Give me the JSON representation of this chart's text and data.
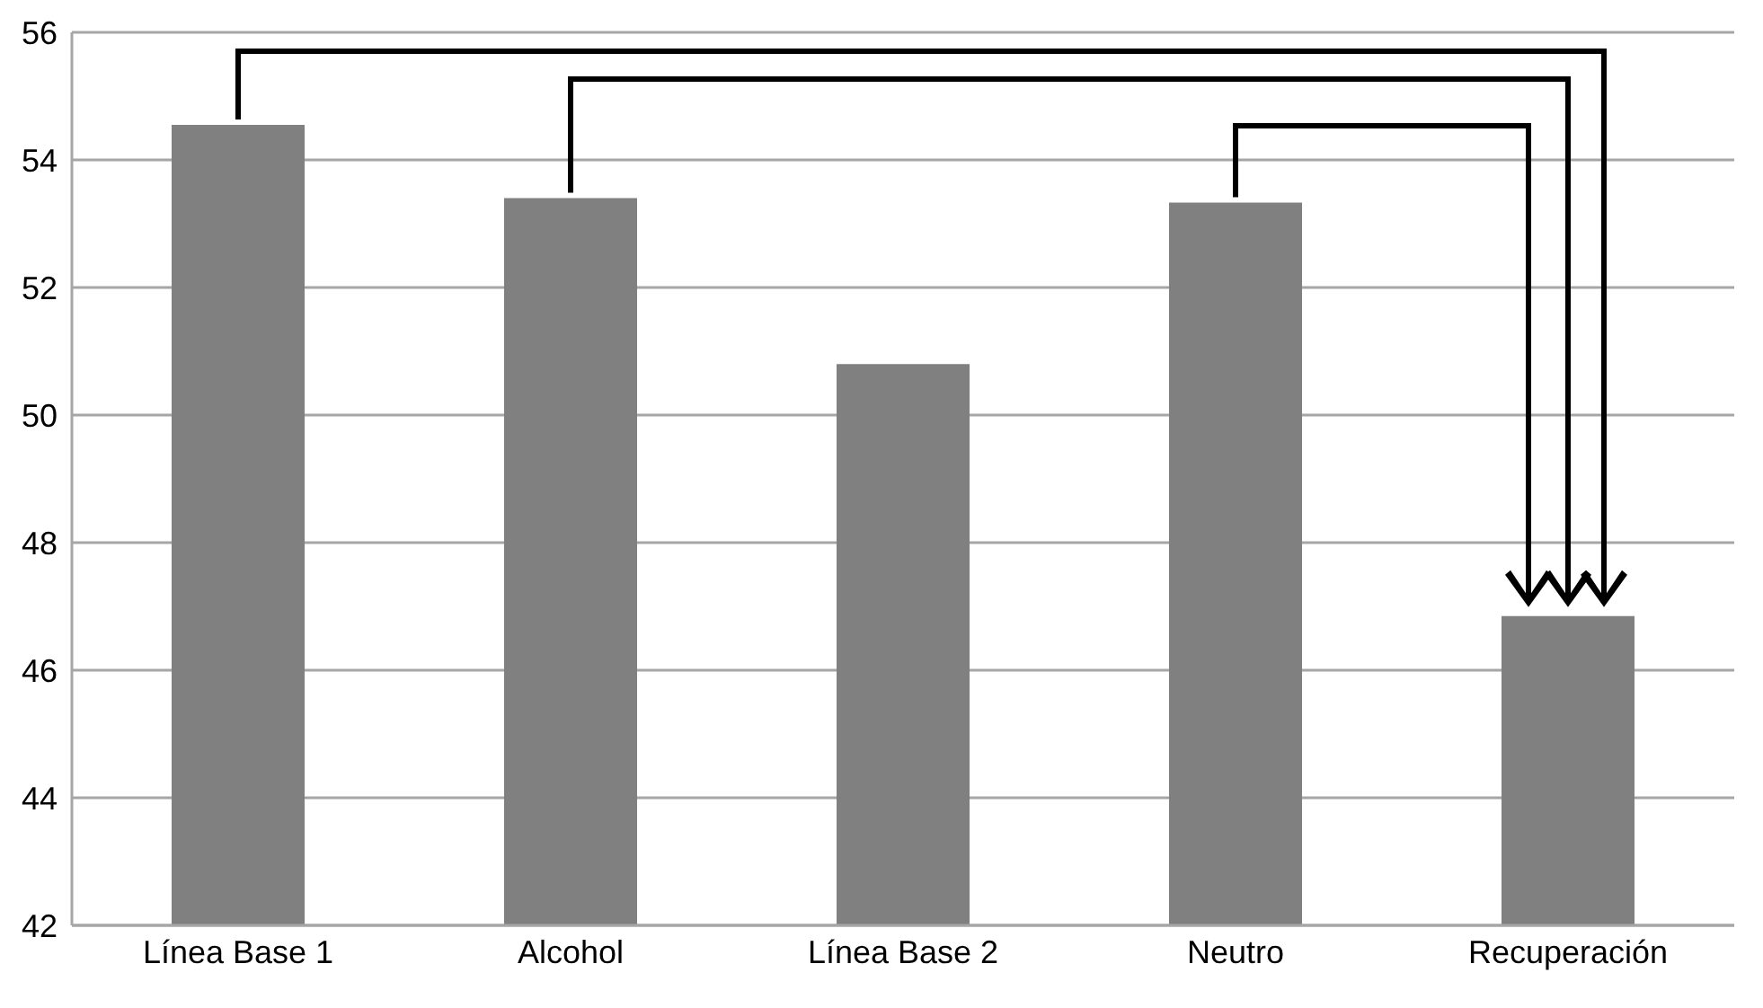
{
  "chart_data": {
    "type": "bar",
    "categories": [
      "Línea Base 1",
      "Alcohol",
      "Línea Base 2",
      "Neutro",
      "Recuperación"
    ],
    "values": [
      54.55,
      53.4,
      50.8,
      53.33,
      46.85
    ],
    "color": "#808080",
    "ylim": [
      42,
      56
    ],
    "yticks": [
      42,
      44,
      46,
      48,
      50,
      52,
      54,
      56
    ],
    "grid": "y"
  }
}
